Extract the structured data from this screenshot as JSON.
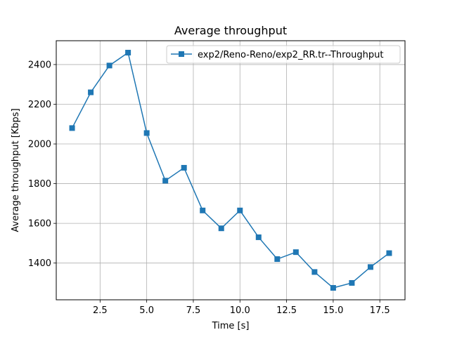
{
  "chart_data": {
    "type": "line",
    "title": "Average throughput",
    "xlabel": "Time [s]",
    "ylabel": "Average throughput [Kbps]",
    "xlim": [
      0.15,
      18.85
    ],
    "ylim": [
      1215,
      2520
    ],
    "xticks": [
      2.5,
      5.0,
      7.5,
      10.0,
      12.5,
      15.0,
      17.5
    ],
    "xtick_labels": [
      "2.5",
      "5.0",
      "7.5",
      "10.0",
      "12.5",
      "15.0",
      "17.5"
    ],
    "yticks": [
      1400,
      1600,
      1800,
      2000,
      2200,
      2400
    ],
    "ytick_labels": [
      "1400",
      "1600",
      "1800",
      "2000",
      "2200",
      "2400"
    ],
    "grid": true,
    "legend_position": "top-right",
    "colors": {
      "series": "#1f77b4"
    },
    "series": [
      {
        "name": "exp2/Reno-Reno/exp2_RR.tr--Throughput",
        "marker": "square",
        "x": [
          1,
          2,
          3,
          4,
          5,
          6,
          7,
          8,
          9,
          10,
          11,
          12,
          13,
          14,
          15,
          16,
          17,
          18
        ],
        "y": [
          2080,
          2260,
          2395,
          2460,
          2055,
          1815,
          1880,
          1665,
          1575,
          1665,
          1530,
          1420,
          1455,
          1355,
          1275,
          1300,
          1380,
          1450
        ]
      }
    ]
  }
}
